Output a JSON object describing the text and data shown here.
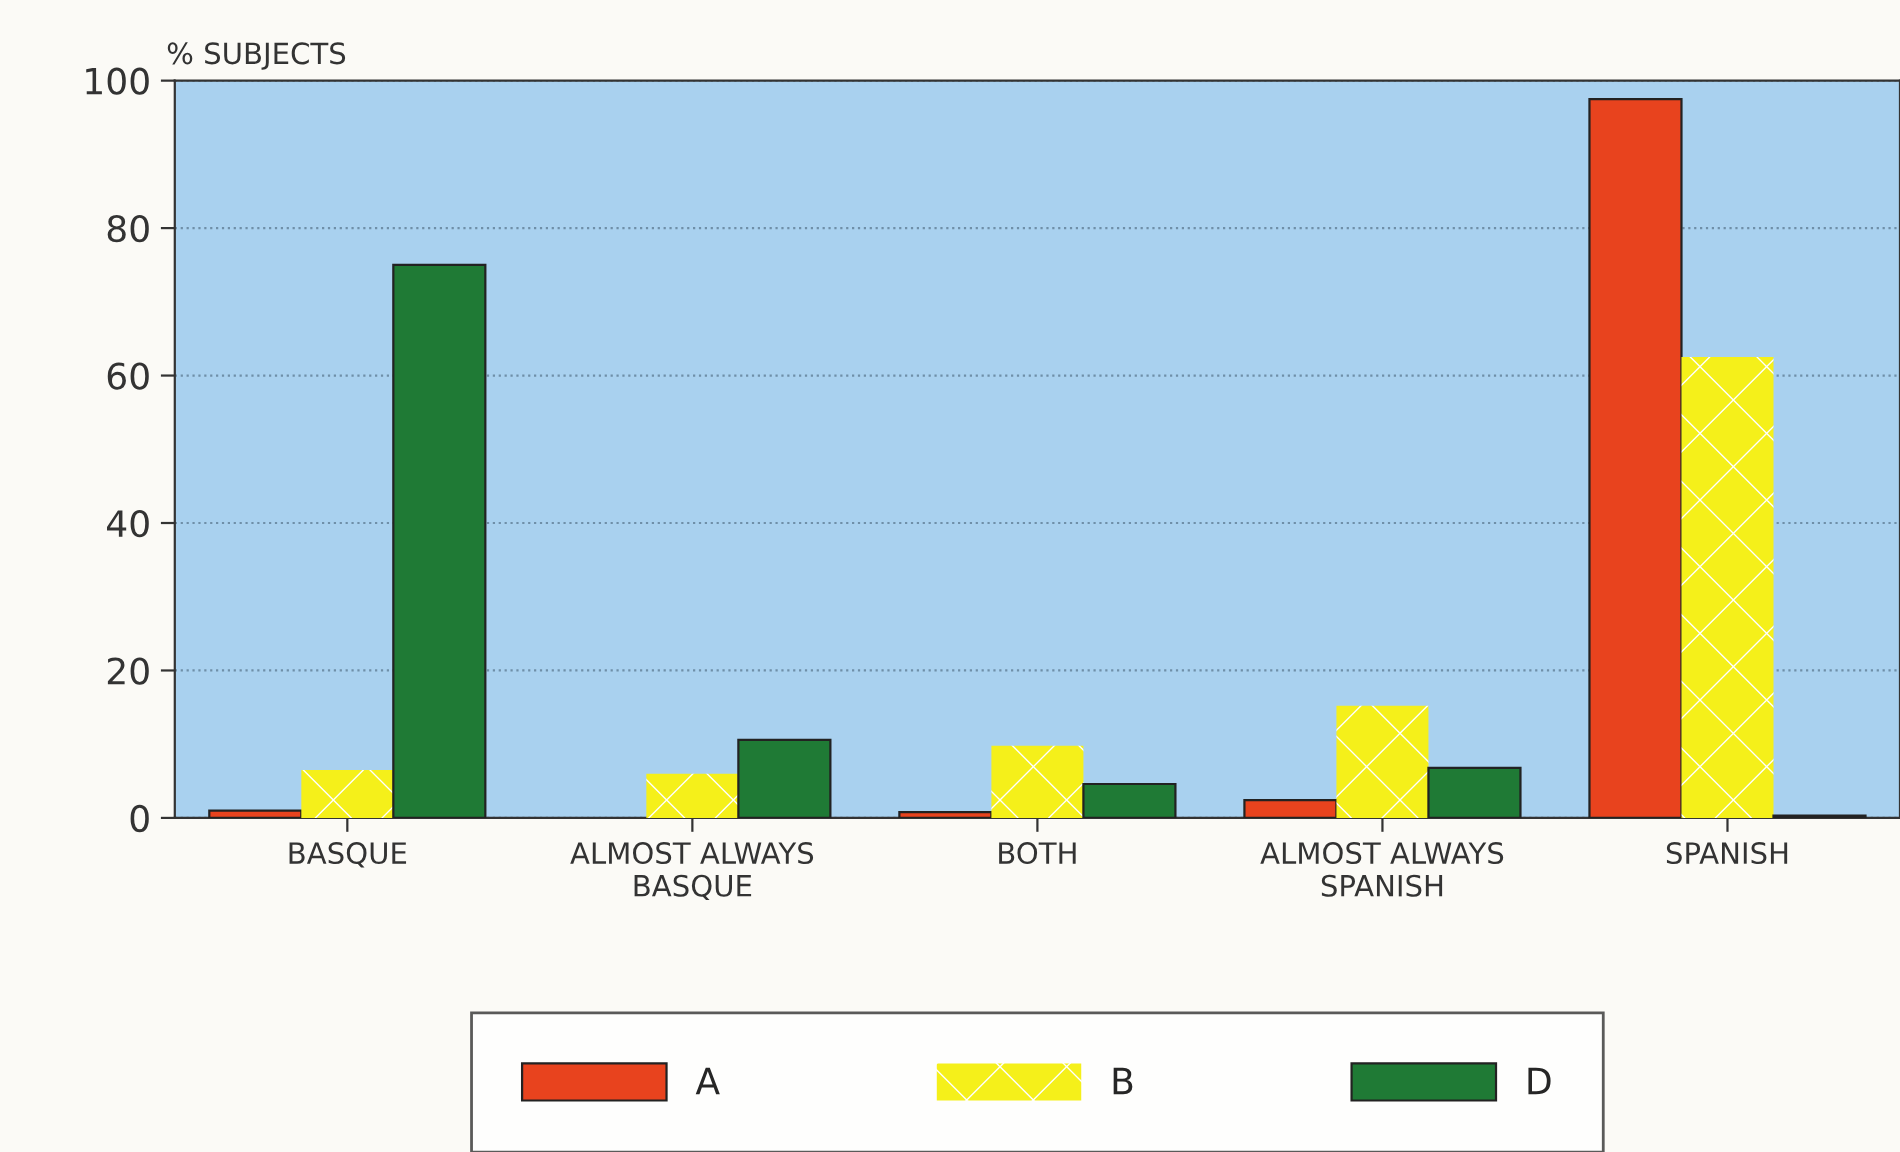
{
  "chart_data": {
    "type": "bar",
    "ylabel": "% SUBJECTS",
    "categories": [
      "BASQUE",
      "ALMOST ALWAYS\nBASQUE",
      "BOTH",
      "ALMOST ALWAYS\nSPANISH",
      "SPANISH"
    ],
    "series": [
      {
        "name": "A",
        "color": "#e8431e",
        "values": [
          1,
          null,
          0.8,
          2.4,
          97.5
        ]
      },
      {
        "name": "B",
        "color": "#f5f01a",
        "values": [
          6.5,
          6,
          9.8,
          15.2,
          62.5
        ]
      },
      {
        "name": "D",
        "color": "#1f7a35",
        "values": [
          75,
          10.6,
          4.6,
          6.8,
          0.3
        ]
      }
    ],
    "ylim": [
      0,
      100
    ],
    "yticks": [
      0,
      20,
      40,
      60,
      80,
      100
    ],
    "grid": "y",
    "legend": "bottom"
  }
}
